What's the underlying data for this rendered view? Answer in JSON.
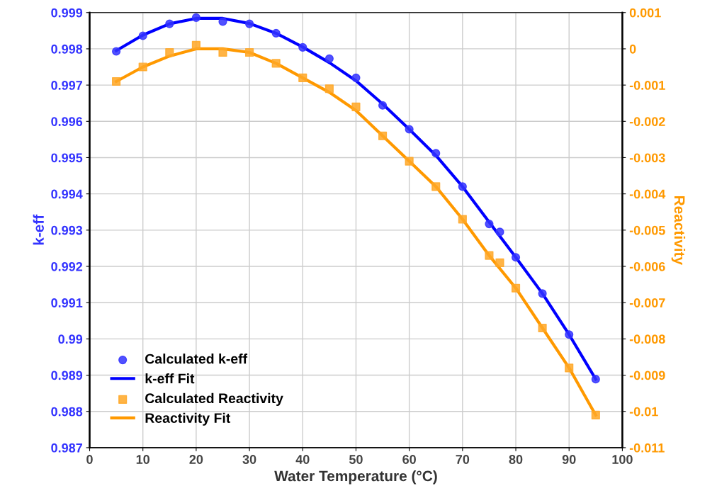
{
  "chart_data": {
    "type": "scatter",
    "xlabel": "Water Temperature (°C)",
    "ylabel": "k-eff",
    "y2label": "Reactivity",
    "xlim": [
      0,
      100
    ],
    "xticks": [
      0,
      10,
      20,
      30,
      40,
      50,
      60,
      70,
      80,
      90,
      100
    ],
    "ylim": [
      0.987,
      0.999
    ],
    "yticks": [
      0.987,
      0.988,
      0.989,
      0.99,
      0.991,
      0.992,
      0.993,
      0.994,
      0.995,
      0.996,
      0.997,
      0.998,
      0.999
    ],
    "y2lim": [
      -0.011,
      0.001
    ],
    "y2ticks": [
      -0.011,
      -0.01,
      -0.009,
      -0.008,
      -0.007,
      -0.006,
      -0.005,
      -0.004,
      -0.003,
      -0.002,
      -0.001,
      0,
      0.001
    ],
    "grid": true,
    "legend": "bottom left",
    "series": [
      {
        "name": "Calculated k-eff",
        "marker": "circle",
        "color": "#3333ff",
        "x": [
          5,
          10,
          15,
          20,
          25,
          30,
          35,
          40,
          45,
          50,
          55,
          60,
          65,
          70,
          75,
          77,
          80,
          85,
          90,
          95
        ],
        "values": [
          0.99793,
          0.99836,
          0.99869,
          0.99886,
          0.99875,
          0.99869,
          0.99843,
          0.99804,
          0.99773,
          0.9972,
          0.99644,
          0.99578,
          0.99512,
          0.9942,
          0.99317,
          0.99295,
          0.99225,
          0.99125,
          0.99012,
          0.98889
        ]
      },
      {
        "name": "k-eff Fit",
        "type": "line",
        "marker": "none",
        "line_style": "solid",
        "color": "#0000ff",
        "x": [
          5,
          10,
          15,
          20,
          25,
          30,
          35,
          40,
          45,
          50,
          55,
          60,
          65,
          70,
          75,
          80,
          85,
          90,
          95
        ],
        "values": [
          0.99795,
          0.99838,
          0.99869,
          0.99884,
          0.99884,
          0.9987,
          0.99843,
          0.99805,
          0.99762,
          0.99712,
          0.99648,
          0.99578,
          0.99506,
          0.9942,
          0.99322,
          0.99225,
          0.99125,
          0.99012,
          0.98889
        ]
      },
      {
        "name": "Calculated Reactivity",
        "marker": "square",
        "axis": "y2",
        "color": "#ffa726",
        "x": [
          5,
          10,
          15,
          20,
          25,
          30,
          35,
          40,
          45,
          50,
          55,
          60,
          65,
          70,
          75,
          77,
          80,
          85,
          90,
          95
        ],
        "values": [
          -0.0009,
          -0.0005,
          -0.0001,
          0.0001,
          -0.0001,
          -0.0001,
          -0.0004,
          -0.0008,
          -0.0011,
          -0.0016,
          -0.0024,
          -0.0031,
          -0.0038,
          -0.0047,
          -0.0057,
          -0.0059,
          -0.0066,
          -0.0077,
          -0.0088,
          -0.0101
        ]
      },
      {
        "name": "Reactivity Fit",
        "type": "line",
        "marker": "none",
        "line_style": "solid",
        "axis": "y2",
        "color": "#ff9900",
        "x": [
          5,
          10,
          15,
          20,
          25,
          30,
          35,
          40,
          45,
          50,
          55,
          60,
          65,
          70,
          75,
          80,
          85,
          90,
          95
        ],
        "values": [
          -0.0009,
          -0.0005,
          -0.0002,
          0,
          0,
          -0.0001,
          -0.0004,
          -0.0008,
          -0.0012,
          -0.0017,
          -0.0024,
          -0.0031,
          -0.0038,
          -0.0047,
          -0.0057,
          -0.0066,
          -0.0077,
          -0.0088,
          -0.0101
        ]
      }
    ]
  }
}
